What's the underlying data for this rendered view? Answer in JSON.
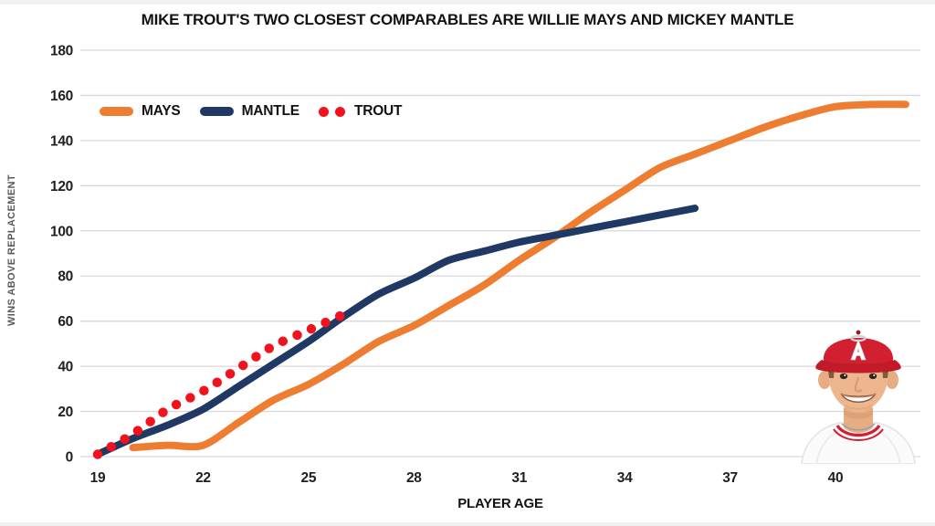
{
  "page": {
    "top_title": "MIKE TROUT'S TWO CLOSEST COMPARABLES ARE WILLIE MAYS AND MICKEY MANTLE"
  },
  "chart_data": {
    "type": "line",
    "title": "MIKE TROUT'S TWO CLOSEST COMPARABLES ARE WILLIE MAYS AND MICKEY MANTLE",
    "xlabel": "PLAYER AGE",
    "ylabel": "WINS ABOVE REPLACEMENT",
    "xlim": [
      18.5,
      42.8
    ],
    "ylim": [
      0,
      180
    ],
    "x_ticks": [
      19,
      22,
      25,
      28,
      31,
      34,
      37,
      40
    ],
    "y_ticks": [
      0,
      20,
      40,
      60,
      80,
      100,
      120,
      140,
      160,
      180
    ],
    "grid": "horizontal-only",
    "legend_position": "top-left",
    "series": [
      {
        "name": "MAYS",
        "color": "#ED7D31",
        "line_style": "solid",
        "x": [
          20,
          21,
          22,
          23,
          24,
          25,
          26,
          27,
          28,
          29,
          30,
          31,
          32,
          33,
          34,
          35,
          36,
          37,
          38,
          39,
          40,
          41,
          42
        ],
        "y": [
          4,
          5,
          5,
          15,
          25,
          32,
          41,
          51,
          58,
          67,
          76,
          87,
          97,
          108,
          118,
          128,
          134,
          140,
          146,
          151,
          155,
          156,
          156
        ]
      },
      {
        "name": "MANTLE",
        "color": "#1F3864",
        "line_style": "solid",
        "x": [
          19,
          20,
          21,
          22,
          23,
          24,
          25,
          26,
          27,
          28,
          29,
          30,
          31,
          32,
          33,
          34,
          35,
          36
        ],
        "y": [
          1,
          8,
          14,
          21,
          31,
          41,
          51,
          62,
          72,
          79,
          87,
          91,
          95,
          98,
          101,
          104,
          107,
          110
        ]
      },
      {
        "name": "TROUT",
        "color": "#F2121E",
        "line_style": "dotted",
        "x": [
          19,
          20,
          21,
          22,
          23,
          24,
          25,
          26
        ],
        "y": [
          1,
          10,
          21,
          29,
          39,
          49,
          56,
          63
        ]
      }
    ]
  },
  "colors": {
    "grid": "#D9D9D9",
    "tick_label": "#1f1f1f",
    "axis_title": "#595959",
    "background": "#ffffff"
  }
}
